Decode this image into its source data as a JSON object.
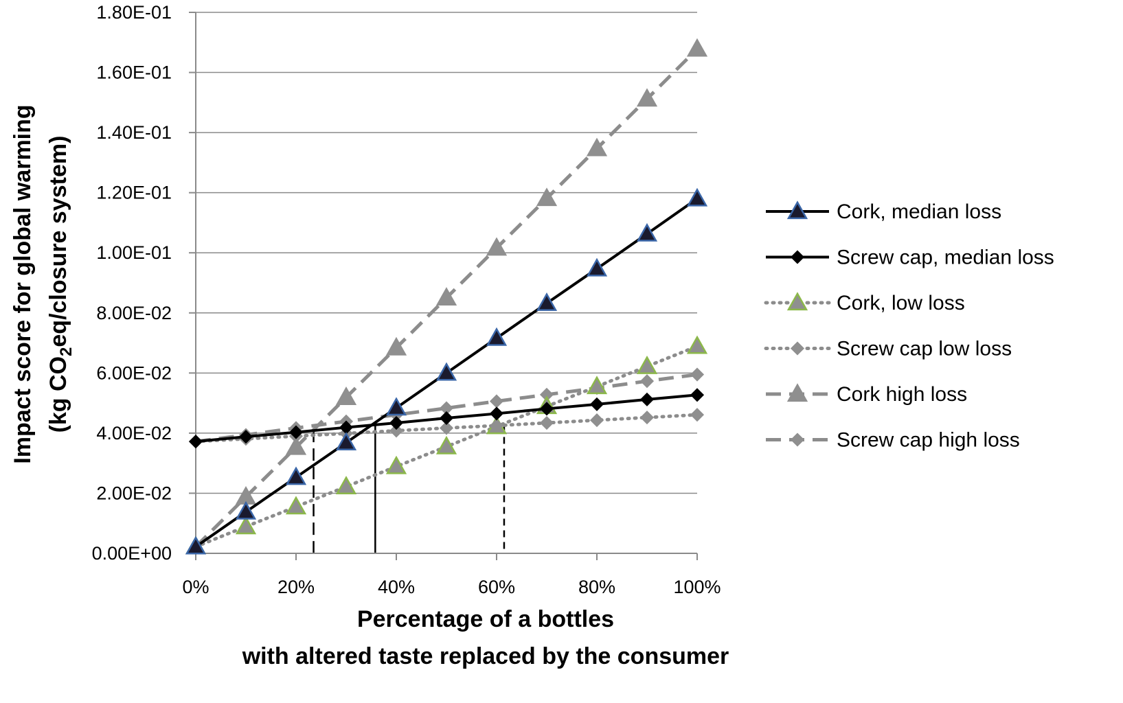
{
  "chart_data": {
    "type": "line",
    "x": [
      0,
      10,
      20,
      30,
      40,
      50,
      60,
      70,
      80,
      90,
      100
    ],
    "x_tick_labels": [
      "0%",
      "20%",
      "40%",
      "60%",
      "80%",
      "100%"
    ],
    "x_ticks": [
      0,
      20,
      40,
      60,
      80,
      100
    ],
    "xlim": [
      0,
      100
    ],
    "ylim": [
      0,
      0.18
    ],
    "y_ticks": [
      0,
      0.02,
      0.04,
      0.06,
      0.08,
      0.1,
      0.12,
      0.14,
      0.16,
      0.18
    ],
    "y_tick_labels": [
      "0.00E+00",
      "2.00E-02",
      "4.00E-02",
      "6.00E-02",
      "8.00E-02",
      "1.00E-01",
      "1.20E-01",
      "1.40E-01",
      "1.60E-01",
      "1.80E-01"
    ],
    "xlabel_line1": "Percentage of a bottles",
    "xlabel_line2": "with altered taste replaced by the consumer",
    "ylabel_line1": "Impact score for global warming",
    "ylabel_line2_pre": "(kg CO",
    "ylabel_line2_sub": "2",
    "ylabel_line2_post": "eq/closure system)",
    "grid": "horizontal",
    "legend_position": "right",
    "series": [
      {
        "name": "Cork, median loss",
        "style": "solid",
        "marker": "triangle",
        "line_color": "#000000",
        "marker_fill": "#1a1a2e",
        "marker_stroke": "#3a66a8",
        "values": [
          0.0022,
          0.0138,
          0.0253,
          0.0368,
          0.0484,
          0.06,
          0.0716,
          0.0832,
          0.0947,
          0.1063,
          0.118
        ]
      },
      {
        "name": "Screw cap, median loss",
        "style": "solid",
        "marker": "diamond",
        "line_color": "#000000",
        "marker_fill": "#000000",
        "marker_stroke": "#000000",
        "values": [
          0.0372,
          0.0388,
          0.0403,
          0.0419,
          0.0434,
          0.045,
          0.0465,
          0.0481,
          0.0496,
          0.0512,
          0.0527
        ]
      },
      {
        "name": "Cork, low loss",
        "style": "dotted",
        "marker": "triangle",
        "line_color": "#8c8c8c",
        "marker_fill": "#8f8f8f",
        "marker_stroke": "#8cb84a",
        "values": [
          0.0022,
          0.0089,
          0.0155,
          0.0222,
          0.0289,
          0.0355,
          0.0422,
          0.0489,
          0.0555,
          0.0622,
          0.0689
        ]
      },
      {
        "name": "Screw cap low loss",
        "style": "dotted",
        "marker": "diamond",
        "line_color": "#8c8c8c",
        "marker_fill": "#8f8f8f",
        "marker_stroke": "#8f8f8f",
        "values": [
          0.0372,
          0.0381,
          0.039,
          0.0399,
          0.0408,
          0.0417,
          0.0425,
          0.0434,
          0.0443,
          0.0452,
          0.0461
        ]
      },
      {
        "name": "Cork high loss",
        "style": "dashed",
        "marker": "triangle",
        "line_color": "#8c8c8c",
        "marker_fill": "#8f8f8f",
        "marker_stroke": "#8f8f8f",
        "values": [
          0.0022,
          0.0188,
          0.0353,
          0.0519,
          0.0684,
          0.085,
          0.1016,
          0.1181,
          0.1347,
          0.1512,
          0.1678
        ]
      },
      {
        "name": "Screw cap high loss",
        "style": "dashed",
        "marker": "diamond",
        "line_color": "#8c8c8c",
        "marker_fill": "#8f8f8f",
        "marker_stroke": "#8f8f8f",
        "values": [
          0.0372,
          0.0394,
          0.0417,
          0.0439,
          0.0461,
          0.0483,
          0.0506,
          0.0528,
          0.055,
          0.0573,
          0.0595
        ]
      }
    ],
    "reference_lines": [
      {
        "name": "high-loss-breakeven",
        "x": 23.5,
        "y_top": 0.0411,
        "style": "long-dash"
      },
      {
        "name": "median-loss-breakeven",
        "x": 35.8,
        "y_top": 0.0427,
        "style": "solid"
      },
      {
        "name": "low-loss-breakeven",
        "x": 61.5,
        "y_top": 0.0426,
        "style": "short-dash"
      }
    ]
  }
}
